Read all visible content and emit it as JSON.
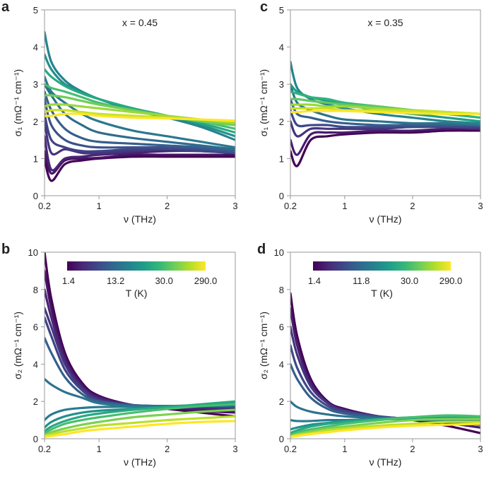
{
  "viridis": [
    "#440154",
    "#482878",
    "#3e4989",
    "#31688e",
    "#26828e",
    "#1f9e89",
    "#35b779",
    "#6ece58",
    "#b5de2b",
    "#fde725"
  ],
  "chart_data": [
    {
      "panel": "a",
      "type": "line",
      "annotation": "x = 0.45",
      "xlabel": "ν (THz)",
      "ylabel": "σ₁ (mΩ⁻¹ cm⁻¹)",
      "xlim": [
        0.2,
        3
      ],
      "ylim": [
        0,
        5
      ],
      "xticks": [
        "0.2",
        "1",
        "2",
        "3"
      ],
      "yticks": [
        "0",
        "1",
        "2",
        "3",
        "4",
        "5"
      ],
      "x": [
        0.2,
        0.3,
        0.5,
        0.75,
        1,
        1.5,
        2,
        2.5,
        3
      ],
      "series": [
        {
          "t": 0.0,
          "values": [
            1.0,
            0.4,
            0.85,
            0.95,
            1.0,
            1.05,
            1.05,
            1.05,
            1.05
          ]
        },
        {
          "t": 0.05,
          "values": [
            1.2,
            0.6,
            0.95,
            1.0,
            1.02,
            1.1,
            1.1,
            1.1,
            1.1
          ]
        },
        {
          "t": 0.1,
          "values": [
            1.6,
            0.7,
            1.0,
            1.05,
            1.1,
            1.15,
            1.2,
            1.2,
            1.15
          ]
        },
        {
          "t": 0.15,
          "values": [
            2.0,
            1.15,
            1.25,
            1.15,
            1.15,
            1.2,
            1.25,
            1.25,
            1.2
          ]
        },
        {
          "t": 0.2,
          "values": [
            2.2,
            1.5,
            1.3,
            1.2,
            1.2,
            1.25,
            1.25,
            1.2,
            1.15
          ]
        },
        {
          "t": 0.25,
          "values": [
            2.6,
            1.9,
            1.5,
            1.35,
            1.3,
            1.3,
            1.3,
            1.25,
            1.15
          ]
        },
        {
          "t": 0.3,
          "values": [
            2.8,
            2.3,
            1.8,
            1.55,
            1.45,
            1.4,
            1.35,
            1.3,
            1.2
          ]
        },
        {
          "t": 0.35,
          "values": [
            3.0,
            2.7,
            2.2,
            1.9,
            1.7,
            1.55,
            1.45,
            1.35,
            1.25
          ]
        },
        {
          "t": 0.4,
          "values": [
            3.2,
            2.8,
            2.5,
            2.2,
            2.0,
            1.75,
            1.6,
            1.45,
            1.3
          ]
        },
        {
          "t": 0.45,
          "values": [
            4.4,
            3.6,
            3.1,
            2.8,
            2.6,
            2.3,
            2.1,
            1.85,
            1.5
          ]
        },
        {
          "t": 0.5,
          "values": [
            3.8,
            3.4,
            3.0,
            2.8,
            2.6,
            2.35,
            2.15,
            1.9,
            1.6
          ]
        },
        {
          "t": 0.6,
          "values": [
            3.4,
            3.2,
            2.95,
            2.75,
            2.6,
            2.35,
            2.15,
            1.95,
            1.7
          ]
        },
        {
          "t": 0.7,
          "values": [
            3.0,
            2.9,
            2.8,
            2.65,
            2.5,
            2.3,
            2.15,
            2.0,
            1.8
          ]
        },
        {
          "t": 0.78,
          "values": [
            2.7,
            2.7,
            2.65,
            2.55,
            2.45,
            2.3,
            2.15,
            2.0,
            1.9
          ]
        },
        {
          "t": 0.85,
          "values": [
            2.4,
            2.45,
            2.45,
            2.4,
            2.35,
            2.25,
            2.15,
            2.05,
            1.95
          ]
        },
        {
          "t": 0.92,
          "values": [
            2.25,
            2.3,
            2.3,
            2.25,
            2.2,
            2.15,
            2.1,
            2.05,
            2.0
          ]
        },
        {
          "t": 1.0,
          "values": [
            2.15,
            2.15,
            2.2,
            2.2,
            2.15,
            2.1,
            2.08,
            2.05,
            2.02
          ]
        }
      ]
    },
    {
      "panel": "b",
      "type": "line",
      "xlabel": "ν (THz)",
      "ylabel": "σ₂ (mΩ⁻¹ cm⁻¹)",
      "xlim": [
        0.2,
        3
      ],
      "ylim": [
        0,
        10
      ],
      "xticks": [
        "0.2",
        "1",
        "2",
        "3"
      ],
      "yticks": [
        "0",
        "2",
        "4",
        "6",
        "8",
        "10"
      ],
      "colorbar": {
        "label": "T (K)",
        "ticks": [
          "1.4",
          "13.2",
          "30.0",
          "290.0"
        ]
      },
      "x": [
        0.2,
        0.3,
        0.5,
        0.75,
        1,
        1.5,
        2,
        2.5,
        3
      ],
      "series": [
        {
          "t": 0.0,
          "values": [
            10,
            7.5,
            4.6,
            3.0,
            2.3,
            1.8,
            1.6,
            1.4,
            1.2
          ]
        },
        {
          "t": 0.05,
          "values": [
            9,
            7.0,
            4.4,
            2.9,
            2.25,
            1.8,
            1.65,
            1.5,
            1.4
          ]
        },
        {
          "t": 0.1,
          "values": [
            8,
            6.5,
            4.2,
            2.8,
            2.2,
            1.8,
            1.7,
            1.6,
            1.5
          ]
        },
        {
          "t": 0.15,
          "values": [
            7,
            6,
            4.0,
            2.7,
            2.1,
            1.8,
            1.75,
            1.7,
            1.6
          ]
        },
        {
          "t": 0.2,
          "values": [
            6.5,
            5.5,
            3.7,
            2.6,
            2.05,
            1.8,
            1.75,
            1.75,
            1.7
          ]
        },
        {
          "t": 0.3,
          "values": [
            5.4,
            4.6,
            3.3,
            2.4,
            2.0,
            1.8,
            1.75,
            1.75,
            1.75
          ]
        },
        {
          "t": 0.38,
          "values": [
            3.2,
            2.9,
            2.5,
            2.2,
            1.9,
            1.75,
            1.75,
            1.75,
            1.8
          ]
        },
        {
          "t": 0.42,
          "values": [
            1.0,
            1.3,
            1.55,
            1.65,
            1.7,
            1.72,
            1.75,
            1.8,
            1.85
          ]
        },
        {
          "t": 0.5,
          "values": [
            0.6,
            0.9,
            1.2,
            1.4,
            1.5,
            1.6,
            1.7,
            1.8,
            1.9
          ]
        },
        {
          "t": 0.6,
          "values": [
            0.4,
            0.65,
            0.95,
            1.2,
            1.35,
            1.55,
            1.7,
            1.85,
            2.0
          ]
        },
        {
          "t": 0.7,
          "values": [
            0.3,
            0.5,
            0.8,
            1.0,
            1.15,
            1.4,
            1.6,
            1.75,
            1.85
          ]
        },
        {
          "t": 0.8,
          "values": [
            0.2,
            0.35,
            0.55,
            0.75,
            0.9,
            1.15,
            1.3,
            1.45,
            1.55
          ]
        },
        {
          "t": 0.9,
          "values": [
            0.15,
            0.25,
            0.4,
            0.55,
            0.7,
            0.85,
            1.0,
            1.1,
            1.2
          ]
        },
        {
          "t": 1.0,
          "values": [
            0.1,
            0.15,
            0.25,
            0.4,
            0.5,
            0.65,
            0.8,
            0.9,
            0.95
          ]
        }
      ]
    },
    {
      "panel": "c",
      "type": "line",
      "annotation": "x = 0.35",
      "xlabel": "ν (THz)",
      "ylabel": "σ₁ (mΩ⁻¹ cm⁻¹)",
      "xlim": [
        0.2,
        3
      ],
      "ylim": [
        0,
        5
      ],
      "xticks": [
        "0.2",
        "1",
        "2",
        "3"
      ],
      "yticks": [
        "0",
        "1",
        "2",
        "3",
        "4",
        "5"
      ],
      "x": [
        0.2,
        0.3,
        0.5,
        0.75,
        1,
        1.5,
        2,
        2.5,
        3
      ],
      "series": [
        {
          "t": 0.0,
          "values": [
            1.2,
            0.8,
            1.5,
            1.6,
            1.65,
            1.7,
            1.7,
            1.75,
            1.75
          ]
        },
        {
          "t": 0.08,
          "values": [
            1.5,
            1.1,
            1.65,
            1.7,
            1.7,
            1.75,
            1.75,
            1.8,
            1.8
          ]
        },
        {
          "t": 0.15,
          "values": [
            2.0,
            1.6,
            1.8,
            1.8,
            1.8,
            1.8,
            1.85,
            1.85,
            1.8
          ]
        },
        {
          "t": 0.22,
          "values": [
            2.3,
            1.9,
            1.9,
            1.9,
            1.85,
            1.85,
            1.85,
            1.85,
            1.85
          ]
        },
        {
          "t": 0.3,
          "values": [
            2.6,
            2.2,
            2.1,
            2.0,
            1.95,
            1.9,
            1.9,
            1.9,
            1.9
          ]
        },
        {
          "t": 0.38,
          "values": [
            3.0,
            2.5,
            2.3,
            2.15,
            2.05,
            2.0,
            1.95,
            1.95,
            1.9
          ]
        },
        {
          "t": 0.45,
          "values": [
            3.6,
            2.9,
            2.6,
            2.45,
            2.35,
            2.2,
            2.1,
            2.0,
            1.95
          ]
        },
        {
          "t": 0.55,
          "values": [
            3.0,
            2.8,
            2.65,
            2.55,
            2.45,
            2.3,
            2.2,
            2.1,
            2.0
          ]
        },
        {
          "t": 0.65,
          "values": [
            2.8,
            2.75,
            2.65,
            2.6,
            2.5,
            2.4,
            2.3,
            2.2,
            2.1
          ]
        },
        {
          "t": 0.75,
          "values": [
            2.6,
            2.6,
            2.55,
            2.5,
            2.45,
            2.4,
            2.3,
            2.25,
            2.2
          ]
        },
        {
          "t": 0.85,
          "values": [
            2.45,
            2.45,
            2.45,
            2.4,
            2.4,
            2.35,
            2.3,
            2.25,
            2.2
          ]
        },
        {
          "t": 0.92,
          "values": [
            2.35,
            2.35,
            2.35,
            2.35,
            2.3,
            2.3,
            2.28,
            2.25,
            2.2
          ]
        },
        {
          "t": 1.0,
          "values": [
            2.25,
            2.25,
            2.28,
            2.28,
            2.28,
            2.25,
            2.22,
            2.2,
            2.2
          ]
        }
      ]
    },
    {
      "panel": "d",
      "type": "line",
      "xlabel": "ν (THz)",
      "ylabel": "σ₂ (mΩ⁻¹ cm⁻¹)",
      "xlim": [
        0.2,
        3
      ],
      "ylim": [
        0,
        10
      ],
      "xticks": [
        "0.2",
        "1",
        "2",
        "3"
      ],
      "yticks": [
        "0",
        "2",
        "4",
        "6",
        "8",
        "10"
      ],
      "colorbar": {
        "label": "T (K)",
        "ticks": [
          "1.4",
          "11.8",
          "30.0",
          "290.0"
        ]
      },
      "x": [
        0.2,
        0.3,
        0.5,
        0.75,
        1,
        1.5,
        2,
        2.5,
        3
      ],
      "series": [
        {
          "t": 0.0,
          "values": [
            7.8,
            5.5,
            3.2,
            2.0,
            1.6,
            1.2,
            1.0,
            0.7,
            0.3
          ]
        },
        {
          "t": 0.08,
          "values": [
            7,
            5,
            3.0,
            1.95,
            1.55,
            1.2,
            1.05,
            0.85,
            0.6
          ]
        },
        {
          "t": 0.15,
          "values": [
            6,
            4.5,
            2.8,
            1.9,
            1.5,
            1.2,
            1.05,
            0.9,
            0.75
          ]
        },
        {
          "t": 0.22,
          "values": [
            5,
            3.8,
            2.5,
            1.75,
            1.45,
            1.2,
            1.05,
            0.95,
            0.85
          ]
        },
        {
          "t": 0.3,
          "values": [
            4,
            3.2,
            2.2,
            1.6,
            1.35,
            1.15,
            1.05,
            0.95,
            0.9
          ]
        },
        {
          "t": 0.38,
          "values": [
            2.0,
            1.7,
            1.45,
            1.3,
            1.2,
            1.1,
            1.05,
            1.0,
            0.95
          ]
        },
        {
          "t": 0.42,
          "values": [
            1.0,
            0.95,
            0.95,
            1.0,
            1.0,
            1.05,
            1.05,
            1.0,
            1.0
          ]
        },
        {
          "t": 0.5,
          "values": [
            0.5,
            0.6,
            0.75,
            0.85,
            0.95,
            1.05,
            1.1,
            1.1,
            1.05
          ]
        },
        {
          "t": 0.6,
          "values": [
            0.3,
            0.45,
            0.65,
            0.8,
            0.9,
            1.05,
            1.15,
            1.2,
            1.15
          ]
        },
        {
          "t": 0.7,
          "values": [
            0.2,
            0.35,
            0.5,
            0.65,
            0.8,
            1.0,
            1.15,
            1.25,
            1.2
          ]
        },
        {
          "t": 0.8,
          "values": [
            0.15,
            0.25,
            0.4,
            0.55,
            0.65,
            0.85,
            1.0,
            1.05,
            1.05
          ]
        },
        {
          "t": 0.9,
          "values": [
            0.1,
            0.2,
            0.3,
            0.45,
            0.55,
            0.7,
            0.8,
            0.9,
            0.9
          ]
        },
        {
          "t": 1.0,
          "values": [
            0.1,
            0.15,
            0.25,
            0.35,
            0.45,
            0.6,
            0.7,
            0.75,
            0.8
          ]
        }
      ]
    }
  ]
}
